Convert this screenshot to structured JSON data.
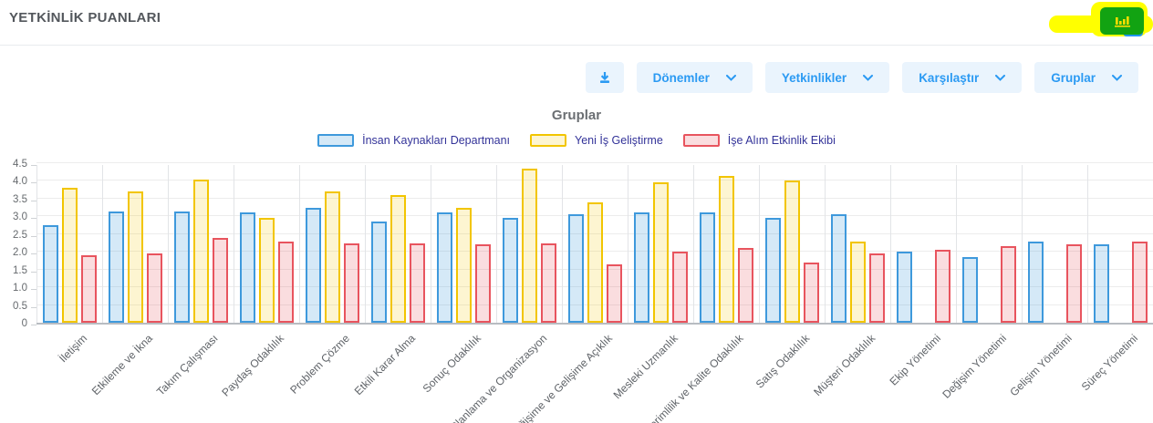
{
  "header": {
    "title": "YETKİNLİK PUANLARI"
  },
  "annotation": {
    "highlighter_color": "#FFFF00",
    "highlighted_target": "chart-type-button"
  },
  "header_buttons": {
    "green_chart_button": {
      "icon": "bar-chart-icon",
      "bg_color": "#12A312",
      "glyph_color": "#FFDD00"
    },
    "partially_hidden_button": {
      "bg_color": "#2196F3"
    }
  },
  "toolbar": {
    "download_button": {
      "icon": "download-icon"
    },
    "dropdowns": [
      {
        "label": "Dönemler",
        "icon": "chevron-down-icon"
      },
      {
        "label": "Yetkinlikler",
        "icon": "chevron-down-icon"
      },
      {
        "label": "Karşılaştır",
        "icon": "chevron-down-icon"
      },
      {
        "label": "Gruplar",
        "icon": "chevron-down-icon"
      }
    ],
    "accent_color": "#2b9af3",
    "button_bg": "#EAF4FD"
  },
  "chart_data": {
    "type": "bar",
    "title": "Gruplar",
    "legend_position": "top",
    "grid": true,
    "ylim": [
      0,
      4.5
    ],
    "yticks": [
      0,
      0.5,
      1,
      1.5,
      2,
      2.5,
      3,
      3.5,
      4,
      4.5
    ],
    "ytick_labels": [
      "0",
      "0.5",
      "1.0",
      "1.5",
      "2.0",
      "2.5",
      "3.0",
      "3.5",
      "4.0",
      "4.5"
    ],
    "categories": [
      "İletişim",
      "Etkileme ve İkna",
      "Takım Çalışması",
      "Paydaş Odaklılık",
      "Problem Çözme",
      "Etkili Karar Alma",
      "Sonuç Odaklılık",
      "Planlama ve Organizasyon",
      "Değişime ve Gelişime Açıklık",
      "Mesleki Uzmanlık",
      "Verimlilik ve Kalite Odaklılık",
      "Satış Odaklılık",
      "Müşteri Odaklılık",
      "Ekip Yönetimi",
      "Değişim Yönetimi",
      "Gelişim Yönetimi",
      "Süreç Yönetimi"
    ],
    "series": [
      {
        "name": "İnsan Kaynakları Departmanı",
        "border_color": "#3E99DC",
        "fill_color": "rgba(62,153,220,0.22)",
        "values": [
          2.75,
          3.15,
          3.15,
          3.1,
          3.25,
          2.85,
          3.1,
          2.95,
          3.05,
          3.1,
          3.1,
          2.95,
          3.05,
          2.0,
          1.85,
          2.3,
          2.2
        ]
      },
      {
        "name": "Yeni İş Geliştirme",
        "border_color": "#F2C500",
        "fill_color": "rgba(242,197,0,0.18)",
        "values": [
          3.8,
          3.7,
          4.05,
          2.95,
          3.7,
          3.6,
          3.25,
          4.35,
          3.4,
          3.95,
          4.15,
          4.0,
          2.3,
          null,
          null,
          null,
          null
        ]
      },
      {
        "name": "İşe Alım Etkinlik Ekibi",
        "border_color": "#E8545E",
        "fill_color": "rgba(232,84,94,0.2)",
        "values": [
          1.9,
          1.95,
          2.4,
          2.3,
          2.25,
          2.25,
          2.2,
          2.25,
          1.65,
          2.0,
          2.1,
          1.7,
          1.95,
          2.05,
          2.15,
          2.2,
          2.3
        ]
      }
    ]
  }
}
